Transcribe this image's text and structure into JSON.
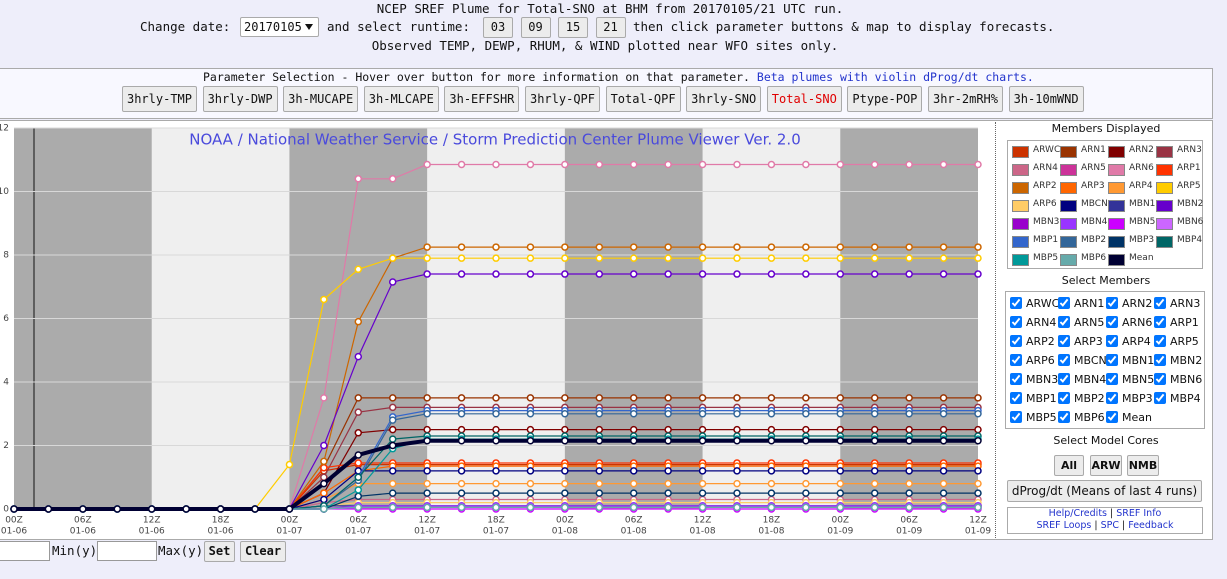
{
  "header": {
    "title": "NCEP SREF Plume for Total-SNO at BHM from 20170105/21 UTC run.",
    "date_label": "Change date:",
    "date_value": "20170105",
    "runtime_label": "and select runtime:",
    "runtimes": [
      "03",
      "09",
      "15",
      "21"
    ],
    "instruction": "then click parameter buttons & map to display forecasts.",
    "observed_note": "Observed TEMP, DEWP, RHUM, & WIND plotted near WFO sites only."
  },
  "parameters": {
    "label": "Parameter Selection - Hover over button for more information on that parameter.",
    "link": "Beta plumes with violin dProg/dt charts.",
    "buttons": [
      "3hrly-TMP",
      "3hrly-DWP",
      "3h-MUCAPE",
      "3h-MLCAPE",
      "3h-EFFSHR",
      "3hrly-QPF",
      "Total-QPF",
      "3hrly-SNO",
      "Total-SNO",
      "Ptype-POP",
      "3hr-2mRH%",
      "3h-10mWND"
    ]
  },
  "chart_data": {
    "type": "line",
    "title": "NOAA / National Weather Service / Storm Prediction Center Plume Viewer Ver. 2.0",
    "categories": [
      "00Z",
      null,
      "06Z",
      null,
      "12Z",
      null,
      "18Z",
      null,
      "00Z",
      null,
      "06Z",
      null,
      "12Z",
      null,
      "18Z",
      null,
      "00Z",
      null,
      "06Z",
      null,
      "12Z",
      null,
      "18Z",
      null,
      "00Z",
      null,
      "06Z",
      null,
      "12Z"
    ],
    "category_dates": [
      "01-06",
      null,
      "01-06",
      null,
      "01-06",
      null,
      "01-06",
      null,
      "01-07",
      null,
      "01-07",
      null,
      "01-07",
      null,
      "01-07",
      null,
      "01-08",
      null,
      "01-08",
      null,
      "01-08",
      null,
      "01-08",
      null,
      "01-09",
      null,
      "01-09",
      null,
      "01-09"
    ],
    "ylim": [
      0,
      12
    ],
    "yticks": [
      0,
      2,
      4,
      6,
      8,
      10,
      12
    ],
    "grid": true,
    "series": [
      {
        "name": "ARWC",
        "color": "#cc3300",
        "values": [
          0,
          0,
          0,
          0,
          0,
          0,
          0,
          0,
          0,
          1.2,
          1.4,
          1.4,
          1.4,
          1.4,
          1.4,
          1.4,
          1.4,
          1.4,
          1.4,
          1.4,
          1.4,
          1.4,
          1.4,
          1.4,
          1.4,
          1.4,
          1.4,
          1.4,
          1.4
        ]
      },
      {
        "name": "ARN1",
        "color": "#993300",
        "values": [
          0,
          0,
          0,
          0,
          0,
          0,
          0,
          0,
          0,
          1.3,
          3.5,
          3.5,
          3.5,
          3.5,
          3.5,
          3.5,
          3.5,
          3.5,
          3.5,
          3.5,
          3.5,
          3.5,
          3.5,
          3.5,
          3.5,
          3.5,
          3.5,
          3.5,
          3.5
        ]
      },
      {
        "name": "ARN2",
        "color": "#800000",
        "values": [
          0,
          0,
          0,
          0,
          0,
          0,
          0,
          0,
          0,
          0.5,
          2.4,
          2.5,
          2.5,
          2.5,
          2.5,
          2.5,
          2.5,
          2.5,
          2.5,
          2.5,
          2.5,
          2.5,
          2.5,
          2.5,
          2.5,
          2.5,
          2.5,
          2.5,
          2.5
        ]
      },
      {
        "name": "ARN3",
        "color": "#993344",
        "values": [
          0,
          0,
          0,
          0,
          0,
          0,
          0,
          0,
          0,
          1,
          3.05,
          3.2,
          3.2,
          3.2,
          3.2,
          3.2,
          3.2,
          3.2,
          3.2,
          3.2,
          3.2,
          3.2,
          3.2,
          3.2,
          3.2,
          3.2,
          3.2,
          3.2,
          3.2
        ]
      },
      {
        "name": "ARN4",
        "color": "#cc6688",
        "values": [
          0,
          0,
          0,
          0,
          0,
          0,
          0,
          0,
          0,
          0.2,
          0.3,
          0.3,
          0.3,
          0.3,
          0.3,
          0.3,
          0.3,
          0.3,
          0.3,
          0.3,
          0.3,
          0.3,
          0.3,
          0.3,
          0.3,
          0.3,
          0.3,
          0.3,
          0.3
        ]
      },
      {
        "name": "ARN5",
        "color": "#cc3399",
        "values": [
          0,
          0,
          0,
          0,
          0,
          0,
          0,
          0,
          0,
          0,
          0.1,
          0.1,
          0.1,
          0.1,
          0.1,
          0.1,
          0.1,
          0.1,
          0.1,
          0.1,
          0.1,
          0.1,
          0.1,
          0.1,
          0.1,
          0.1,
          0.1,
          0.1,
          0.1
        ]
      },
      {
        "name": "ARN6",
        "color": "#e07aa8",
        "values": [
          0,
          0,
          0,
          0,
          0,
          0,
          0,
          0,
          0,
          3.5,
          10.4,
          10.4,
          10.85,
          10.85,
          10.85,
          10.85,
          10.85,
          10.85,
          10.85,
          10.85,
          10.85,
          10.85,
          10.85,
          10.85,
          10.85,
          10.85,
          10.85,
          10.85,
          10.85
        ]
      },
      {
        "name": "ARP1",
        "color": "#ff3300",
        "values": [
          0,
          0,
          0,
          0,
          0,
          0,
          0,
          0,
          0,
          1.3,
          1.45,
          1.45,
          1.45,
          1.45,
          1.45,
          1.45,
          1.45,
          1.45,
          1.45,
          1.45,
          1.45,
          1.45,
          1.45,
          1.45,
          1.45,
          1.45,
          1.45,
          1.45,
          1.45
        ]
      },
      {
        "name": "ARP2",
        "color": "#cc6600",
        "values": [
          0,
          0,
          0,
          0,
          0,
          0,
          0,
          0,
          0,
          1.5,
          5.9,
          7.9,
          8.25,
          8.25,
          8.25,
          8.25,
          8.25,
          8.25,
          8.25,
          8.25,
          8.25,
          8.25,
          8.25,
          8.25,
          8.25,
          8.25,
          8.25,
          8.25,
          8.25
        ]
      },
      {
        "name": "ARP3",
        "color": "#ff6600",
        "values": [
          0,
          0,
          0,
          0,
          0,
          0,
          0,
          0,
          0,
          0.5,
          1.2,
          1.35,
          1.35,
          1.35,
          1.35,
          1.35,
          1.35,
          1.35,
          1.35,
          1.35,
          1.35,
          1.35,
          1.35,
          1.35,
          1.35,
          1.35,
          1.35,
          1.35,
          1.35
        ]
      },
      {
        "name": "ARP4",
        "color": "#ff9933",
        "values": [
          0,
          0,
          0,
          0,
          0,
          0,
          0,
          0,
          0,
          0.3,
          0.8,
          0.8,
          0.8,
          0.8,
          0.8,
          0.8,
          0.8,
          0.8,
          0.8,
          0.8,
          0.8,
          0.8,
          0.8,
          0.8,
          0.8,
          0.8,
          0.8,
          0.8,
          0.8
        ]
      },
      {
        "name": "ARP5",
        "color": "#ffcc00",
        "values": [
          0,
          0,
          0,
          0,
          0,
          0,
          0,
          0,
          1.4,
          6.6,
          7.55,
          7.9,
          7.9,
          7.9,
          7.9,
          7.9,
          7.9,
          7.9,
          7.9,
          7.9,
          7.9,
          7.9,
          7.9,
          7.9,
          7.9,
          7.9,
          7.9,
          7.9,
          7.9
        ]
      },
      {
        "name": "ARP6",
        "color": "#ffcc66",
        "values": [
          0,
          0,
          0,
          0,
          0,
          0,
          0,
          0,
          0,
          0.1,
          0.2,
          0.2,
          0.2,
          0.2,
          0.2,
          0.2,
          0.2,
          0.2,
          0.2,
          0.2,
          0.2,
          0.2,
          0.2,
          0.2,
          0.2,
          0.2,
          0.2,
          0.2,
          0.2
        ]
      },
      {
        "name": "MBCN",
        "color": "#000080",
        "values": [
          0,
          0,
          0,
          0,
          0,
          0,
          0,
          0,
          0,
          0.3,
          1.2,
          1.2,
          1.2,
          1.2,
          1.2,
          1.2,
          1.2,
          1.2,
          1.2,
          1.2,
          1.2,
          1.2,
          1.2,
          1.2,
          1.2,
          1.2,
          1.2,
          1.2,
          1.2
        ]
      },
      {
        "name": "MBN1",
        "color": "#333399",
        "values": [
          0,
          0,
          0,
          0,
          0,
          0,
          0,
          0,
          0,
          0.1,
          0.1,
          0.1,
          0.1,
          0.1,
          0.1,
          0.1,
          0.1,
          0.1,
          0.1,
          0.1,
          0.1,
          0.1,
          0.1,
          0.1,
          0.1,
          0.1,
          0.1,
          0.1,
          0.1
        ]
      },
      {
        "name": "MBN2",
        "color": "#6600cc",
        "values": [
          0,
          0,
          0,
          0,
          0,
          0,
          0,
          0,
          0,
          2,
          4.8,
          7.15,
          7.4,
          7.4,
          7.4,
          7.4,
          7.4,
          7.4,
          7.4,
          7.4,
          7.4,
          7.4,
          7.4,
          7.4,
          7.4,
          7.4,
          7.4,
          7.4,
          7.4
        ]
      },
      {
        "name": "MBN3",
        "color": "#9900cc",
        "values": [
          0,
          0,
          0,
          0,
          0,
          0,
          0,
          0,
          0,
          0,
          0.05,
          0.05,
          0.05,
          0.05,
          0.05,
          0.05,
          0.05,
          0.05,
          0.05,
          0.05,
          0.05,
          0.05,
          0.05,
          0.05,
          0.05,
          0.05,
          0.05,
          0.05,
          0.05
        ]
      },
      {
        "name": "MBN4",
        "color": "#9933ff",
        "values": [
          0,
          0,
          0,
          0,
          0,
          0,
          0,
          0,
          0,
          0,
          0.1,
          0.1,
          0.1,
          0.1,
          0.1,
          0.1,
          0.1,
          0.1,
          0.1,
          0.1,
          0.1,
          0.1,
          0.1,
          0.1,
          0.1,
          0.1,
          0.1,
          0.1,
          0.1
        ]
      },
      {
        "name": "MBN5",
        "color": "#cc00ff",
        "values": [
          0,
          0,
          0,
          0,
          0,
          0,
          0,
          0,
          0,
          0,
          0,
          0,
          0,
          0,
          0,
          0,
          0,
          0,
          0,
          0,
          0,
          0,
          0,
          0,
          0,
          0,
          0,
          0,
          0
        ]
      },
      {
        "name": "MBN6",
        "color": "#cc66ff",
        "values": [
          0,
          0,
          0,
          0,
          0,
          0,
          0,
          0,
          0,
          0,
          0.05,
          0.05,
          0.05,
          0.05,
          0.05,
          0.05,
          0.05,
          0.05,
          0.05,
          0.05,
          0.05,
          0.05,
          0.05,
          0.05,
          0.05,
          0.05,
          0.05,
          0.05,
          0.05
        ]
      },
      {
        "name": "MBP1",
        "color": "#3366cc",
        "values": [
          0,
          0,
          0,
          0,
          0,
          0,
          0,
          0,
          0,
          0.1,
          1,
          2.9,
          3.1,
          3.1,
          3.1,
          3.1,
          3.1,
          3.1,
          3.1,
          3.1,
          3.1,
          3.1,
          3.1,
          3.1,
          3.1,
          3.1,
          3.1,
          3.1,
          3.1
        ]
      },
      {
        "name": "MBP2",
        "color": "#336699",
        "values": [
          0,
          0,
          0,
          0,
          0,
          0,
          0,
          0,
          0,
          0.1,
          0.9,
          2.8,
          3,
          3,
          3,
          3,
          3,
          3,
          3,
          3,
          3,
          3,
          3,
          3,
          3,
          3,
          3,
          3,
          3
        ]
      },
      {
        "name": "MBP3",
        "color": "#003366",
        "values": [
          0,
          0,
          0,
          0,
          0,
          0,
          0,
          0,
          0,
          0,
          0.4,
          0.5,
          0.5,
          0.5,
          0.5,
          0.5,
          0.5,
          0.5,
          0.5,
          0.5,
          0.5,
          0.5,
          0.5,
          0.5,
          0.5,
          0.5,
          0.5,
          0.5,
          0.5
        ]
      },
      {
        "name": "MBP4",
        "color": "#006666",
        "values": [
          0,
          0,
          0,
          0,
          0,
          0,
          0,
          0,
          0,
          0.1,
          1,
          2.2,
          2.3,
          2.3,
          2.3,
          2.3,
          2.3,
          2.3,
          2.3,
          2.3,
          2.3,
          2.3,
          2.3,
          2.3,
          2.3,
          2.3,
          2.3,
          2.3,
          2.3
        ]
      },
      {
        "name": "MBP5",
        "color": "#009999",
        "values": [
          0,
          0,
          0,
          0,
          0,
          0,
          0,
          0,
          0,
          0,
          0.6,
          1.9,
          2.2,
          2.2,
          2.2,
          2.2,
          2.2,
          2.2,
          2.2,
          2.2,
          2.2,
          2.2,
          2.2,
          2.2,
          2.2,
          2.2,
          2.2,
          2.2,
          2.2
        ]
      },
      {
        "name": "MBP6",
        "color": "#66aaaa",
        "values": [
          0,
          0,
          0,
          0,
          0,
          0,
          0,
          0,
          0,
          0,
          0.05,
          0.05,
          0.05,
          0.05,
          0.05,
          0.05,
          0.05,
          0.05,
          0.05,
          0.05,
          0.05,
          0.05,
          0.05,
          0.05,
          0.05,
          0.05,
          0.05,
          0.05,
          0.05
        ]
      },
      {
        "name": "Mean",
        "color": "#000033",
        "values": [
          0,
          0,
          0,
          0,
          0,
          0,
          0,
          0,
          0,
          0.8,
          1.7,
          2,
          2.15,
          2.15,
          2.15,
          2.15,
          2.15,
          2.15,
          2.15,
          2.15,
          2.15,
          2.15,
          2.15,
          2.15,
          2.15,
          2.15,
          2.15,
          2.15,
          2.15
        ]
      }
    ]
  },
  "sidebar": {
    "members_title": "Members Displayed",
    "select_title": "Select Members",
    "cores_title": "Select Model Cores",
    "cores": [
      "All",
      "ARW",
      "NMB"
    ],
    "dprog": "dProg/dt (Means of last 4 runs)",
    "links": [
      "Help/Credits",
      "SREF Info",
      "SREF Loops",
      "SPC",
      "Feedback"
    ],
    "separator": "|"
  },
  "controls": {
    "min_label": "Min(y)",
    "max_label": "Max(y)",
    "set": "Set",
    "clear": "Clear"
  }
}
